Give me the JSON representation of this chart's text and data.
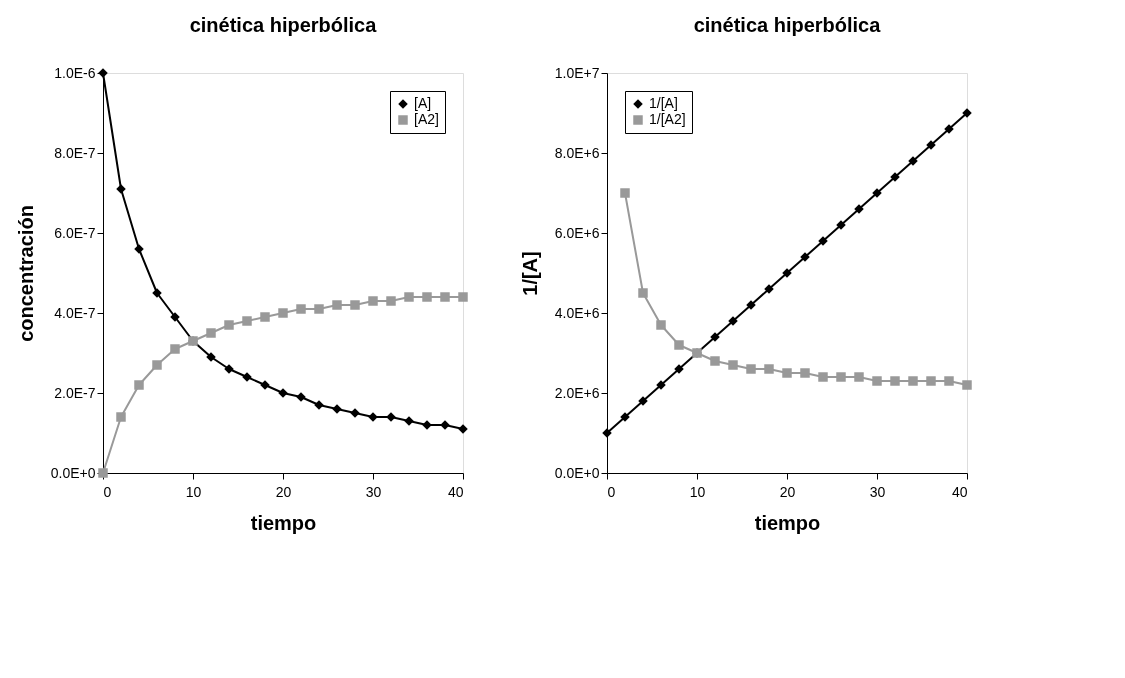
{
  "chart_data": [
    {
      "type": "line",
      "title": "cinética hiperbólica",
      "xlabel": "tiempo",
      "ylabel": "concentración",
      "x": [
        0,
        2,
        4,
        6,
        8,
        10,
        12,
        14,
        16,
        18,
        20,
        22,
        24,
        26,
        28,
        30,
        32,
        34,
        36,
        38,
        40
      ],
      "series": [
        {
          "name": "[A]",
          "color": "#000000",
          "marker": "diamond",
          "values": [
            1e-06,
            7.1e-07,
            5.6e-07,
            4.5e-07,
            3.9e-07,
            3.3e-07,
            2.9e-07,
            2.6e-07,
            2.4e-07,
            2.2e-07,
            2e-07,
            1.9e-07,
            1.7e-07,
            1.6e-07,
            1.5e-07,
            1.4e-07,
            1.4e-07,
            1.3e-07,
            1.2e-07,
            1.2e-07,
            1.1e-07
          ]
        },
        {
          "name": "[A2]",
          "color": "#999999",
          "marker": "square",
          "values": [
            0,
            1.4e-07,
            2.2e-07,
            2.7e-07,
            3.1e-07,
            3.3e-07,
            3.5e-07,
            3.7e-07,
            3.8e-07,
            3.9e-07,
            4e-07,
            4.1e-07,
            4.1e-07,
            4.2e-07,
            4.2e-07,
            4.3e-07,
            4.3e-07,
            4.4e-07,
            4.4e-07,
            4.4e-07,
            4.4e-07
          ]
        }
      ],
      "xlim": [
        0,
        40
      ],
      "xticks": [
        0,
        10,
        20,
        30,
        40
      ],
      "ylim": [
        0,
        1e-06
      ],
      "yticks": [
        {
          "value": 0,
          "label": "0.0E+0"
        },
        {
          "value": 2e-07,
          "label": "2.0E-7"
        },
        {
          "value": 4e-07,
          "label": "4.0E-7"
        },
        {
          "value": 6e-07,
          "label": "6.0E-7"
        },
        {
          "value": 8e-07,
          "label": "8.0E-7"
        },
        {
          "value": 1e-06,
          "label": "1.0E-6"
        }
      ],
      "grid": false,
      "legend": "top right",
      "line_style": "solid"
    },
    {
      "type": "line",
      "title": "cinética hiperbólica",
      "xlabel": "tiempo",
      "ylabel": "1/[A]",
      "x": [
        0,
        2,
        4,
        6,
        8,
        10,
        12,
        14,
        16,
        18,
        20,
        22,
        24,
        26,
        28,
        30,
        32,
        34,
        36,
        38,
        40
      ],
      "series": [
        {
          "name": "1/[A]",
          "color": "#000000",
          "marker": "diamond",
          "values": [
            1000000.0,
            1400000.0,
            1800000.0,
            2200000.0,
            2600000.0,
            3000000.0,
            3400000.0,
            3800000.0,
            4200000.0,
            4600000.0,
            5000000.0,
            5400000.0,
            5800000.0,
            6200000.0,
            6600000.0,
            7000000.0,
            7400000.0,
            7800000.0,
            8200000.0,
            8600000.0,
            9000000.0
          ]
        },
        {
          "name": "1/[A2]",
          "color": "#999999",
          "marker": "square",
          "values": [
            null,
            7000000.0,
            4500000.0,
            3700000.0,
            3200000.0,
            3000000.0,
            2800000.0,
            2700000.0,
            2600000.0,
            2600000.0,
            2500000.0,
            2500000.0,
            2400000.0,
            2400000.0,
            2400000.0,
            2300000.0,
            2300000.0,
            2300000.0,
            2300000.0,
            2300000.0,
            2200000.0
          ]
        }
      ],
      "xlim": [
        0,
        40
      ],
      "xticks": [
        0,
        10,
        20,
        30,
        40
      ],
      "ylim": [
        0,
        10000000.0
      ],
      "yticks": [
        {
          "value": 0,
          "label": "0.0E+0"
        },
        {
          "value": 2000000.0,
          "label": "2.0E+6"
        },
        {
          "value": 4000000.0,
          "label": "4.0E+6"
        },
        {
          "value": 6000000.0,
          "label": "6.0E+6"
        },
        {
          "value": 8000000.0,
          "label": "8.0E+6"
        },
        {
          "value": 10000000.0,
          "label": "1.0E+7"
        }
      ],
      "grid": false,
      "legend": "top left",
      "line_style": "solid"
    }
  ]
}
